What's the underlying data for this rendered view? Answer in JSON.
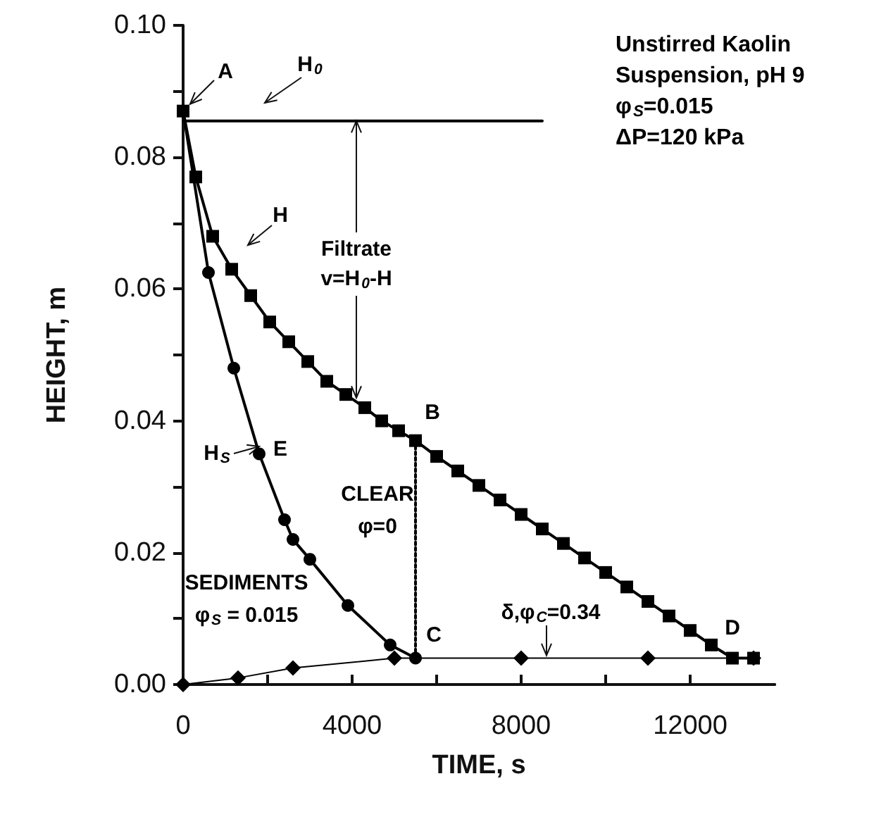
{
  "chart_data": {
    "type": "line",
    "xlabel": "TIME, s",
    "ylabel": "HEIGHT, m",
    "xlim": [
      0,
      14000
    ],
    "ylim": [
      0,
      0.1
    ],
    "xticks": [
      0,
      {
        "value": 2000,
        "label": null
      },
      4000,
      {
        "value": 6000,
        "label": null
      },
      8000,
      {
        "value": 10000,
        "label": null
      },
      12000
    ],
    "yticks": [
      {
        "value": 0,
        "label": "0.00"
      },
      {
        "value": 0.01,
        "label": null
      },
      {
        "value": 0.02,
        "label": "0.02"
      },
      {
        "value": 0.03,
        "label": null
      },
      {
        "value": 0.04,
        "label": "0.04"
      },
      {
        "value": 0.05,
        "label": null
      },
      {
        "value": 0.06,
        "label": "0.06"
      },
      {
        "value": 0.07,
        "label": null
      },
      {
        "value": 0.08,
        "label": "0.08"
      },
      {
        "value": 0.09,
        "label": null
      },
      {
        "value": 0.1,
        "label": "0.10"
      }
    ],
    "grid": false,
    "series": [
      {
        "color": "#000000",
        "marker": "square",
        "x": [
          0,
          300,
          700,
          1150,
          1600,
          2050,
          2500,
          2950,
          3400,
          3850,
          4300,
          4700,
          5100,
          5500,
          6000,
          6500,
          7000,
          7500,
          8000,
          8500,
          9000,
          9500,
          10000,
          10500,
          11000,
          11500,
          12000,
          12500,
          13000,
          13500
        ],
        "values": [
          0.087,
          0.077,
          0.068,
          0.063,
          0.059,
          0.055,
          0.052,
          0.049,
          0.046,
          0.044,
          0.042,
          0.04,
          0.0385,
          0.037,
          0.0346,
          0.0324,
          0.0302,
          0.028,
          0.0258,
          0.0236,
          0.0214,
          0.0192,
          0.017,
          0.0148,
          0.0126,
          0.0104,
          0.0082,
          0.006,
          0.004,
          0.004
        ]
      },
      {
        "color": "#000000",
        "marker": "circle",
        "x": [
          0,
          600,
          1200,
          1800,
          2400,
          2600,
          3000,
          3900,
          4900,
          5500
        ],
        "values": [
          0.087,
          0.0625,
          0.048,
          0.035,
          0.025,
          0.022,
          0.019,
          0.012,
          0.006,
          0.004
        ]
      },
      {
        "color": "#000000",
        "marker": "diamond",
        "x": [
          0,
          1300,
          2600,
          5000,
          8000,
          11000,
          13500
        ],
        "values": [
          0,
          0.001,
          0.0025,
          0.004,
          0.004,
          0.004,
          0.004
        ]
      },
      {
        "color": "#000000",
        "marker": "none",
        "x": [
          0,
          8500
        ],
        "values": [
          0.0855,
          0.0855
        ]
      },
      {
        "color": "#000000",
        "marker": "none",
        "line_style": "dotted",
        "x": [
          5500,
          5500
        ],
        "values": [
          0.037,
          0.004
        ]
      }
    ],
    "annotations": [
      {
        "text": "A",
        "x": 0,
        "y": 0.087
      },
      "H$_{0}$",
      "H",
      {
        "text": "Filtrate",
        "x": 4100,
        "y": 0.0855
      },
      {
        "text": "v=H$_{0}$-H",
        "x": 4100,
        "y": 0.0435
      },
      "B",
      "H$_{S}$",
      "E",
      "CLEAR",
      "φ=0",
      "SEDIMENTS",
      "φ$_{S}$ = 0.015",
      "C",
      {
        "text": "δ,φ$_{C}$=0.34",
        "x": 8600,
        "y": 0.004
      },
      "D",
      "Unstirred Kaolin",
      "Suspension, pH 9",
      "φ$_{S}$=0.015",
      "ΔP=120 kPa"
    ]
  }
}
